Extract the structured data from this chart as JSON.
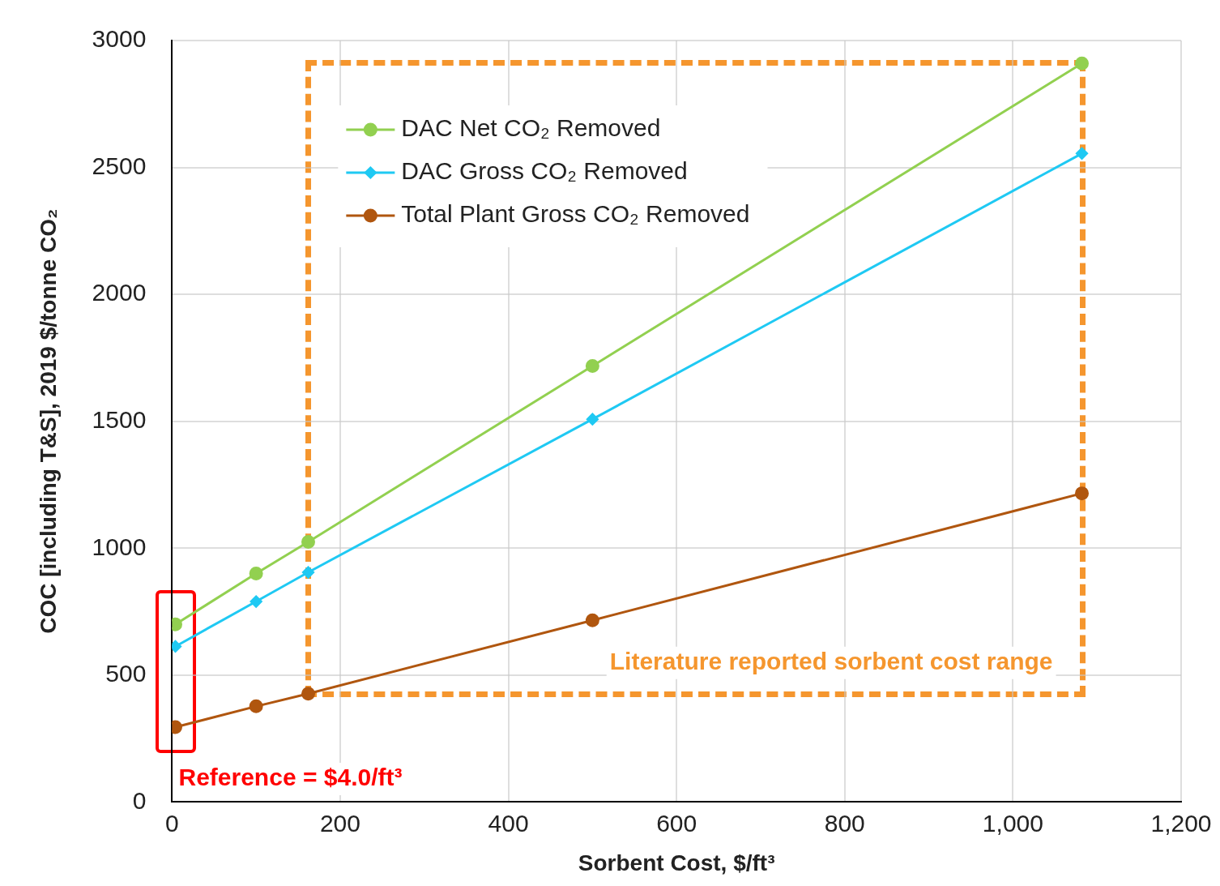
{
  "chart_data": {
    "type": "line",
    "xlabel": "Sorbent Cost, $/ft³",
    "ylabel": "COC [including T&S], 2019 $/tonne CO₂",
    "series": [
      {
        "name": "DAC Net CO₂ Removed",
        "color": "#92d050",
        "marker": "circle",
        "x": [
          4,
          100,
          162,
          500,
          1082
        ],
        "values": [
          700,
          900,
          1025,
          1718,
          2910
        ]
      },
      {
        "name": "DAC Gross CO₂ Removed",
        "color": "#1fc9f3",
        "marker": "diamond",
        "x": [
          4,
          100,
          162,
          500,
          1082
        ],
        "values": [
          613,
          790,
          905,
          1508,
          2555
        ]
      },
      {
        "name": "Total Plant Gross CO₂ Removed",
        "color": "#b0560f",
        "marker": "circle",
        "x": [
          4,
          100,
          162,
          500,
          1082
        ],
        "values": [
          295,
          377,
          427,
          716,
          1216
        ]
      }
    ],
    "xlim": [
      0,
      1200
    ],
    "xticks": [
      0,
      200,
      400,
      600,
      800,
      {
        "value": 1000,
        "label": "1,000"
      },
      {
        "value": 1200,
        "label": "1,200"
      }
    ],
    "ylim": [
      0,
      3000
    ],
    "yticks": [
      0,
      500,
      1000,
      1500,
      2000,
      2500,
      3000
    ],
    "grid": true,
    "legend": "top left",
    "line_style": "solid",
    "annotations": [
      "Literature reported sorbent cost range",
      "Reference = $4.0/ft³"
    ]
  }
}
